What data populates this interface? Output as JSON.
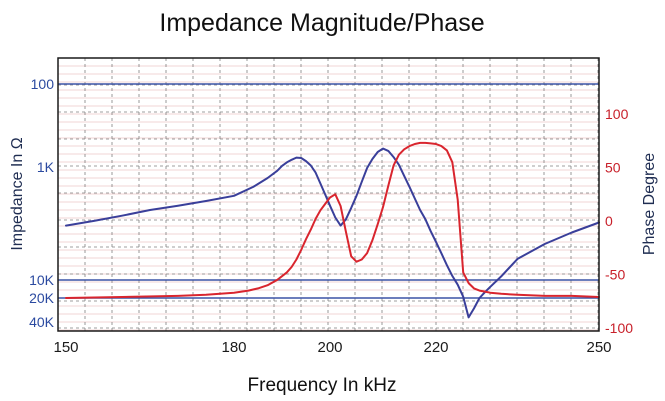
{
  "chart_data": {
    "type": "line",
    "title": "Impedance Magnitude/Phase",
    "xlabel": "Frequency In kHz",
    "ylabel_left": "Impedance In Ω",
    "ylabel_right": "Phase Degree",
    "xlim": [
      150,
      250
    ],
    "x_ticks": [
      "150",
      "180",
      "200",
      "220",
      "250"
    ],
    "left_axis": {
      "scale": "log",
      "inverted": true,
      "ylim": [
        100,
        40000
      ],
      "ticks": [
        {
          "label": "100",
          "value": 100
        },
        {
          "label": "1K",
          "value": 1000
        },
        {
          "label": "10K",
          "value": 10000
        },
        {
          "label": "20K",
          "value": 20000
        },
        {
          "label": "40K",
          "value": 40000
        }
      ]
    },
    "right_axis": {
      "ylim": [
        -100,
        150
      ],
      "ticks": [
        "100",
        "50",
        "0",
        "-50",
        "-100"
      ],
      "tick_values": [
        100,
        50,
        0,
        -50,
        -100
      ]
    },
    "grid": true,
    "colors": {
      "impedance": "#3a3f9a",
      "phase": "#d9252e",
      "axis": "#1a1a1a",
      "grid": "#808080",
      "minor_grid": "#e3a9a9",
      "ref_line": "#3b53a5"
    },
    "series": [
      {
        "axis": "left",
        "x": [
          150,
          155,
          160,
          165,
          170,
          175,
          180,
          184,
          187,
          189,
          190,
          191,
          192,
          193,
          194,
          195,
          196,
          197,
          198,
          199,
          200,
          201,
          202,
          203,
          204,
          205,
          206,
          207,
          208,
          209,
          210,
          211,
          212,
          213,
          214,
          215,
          216,
          217,
          218,
          219,
          220,
          221,
          222,
          223,
          224,
          225,
          226,
          227,
          228,
          229,
          230,
          232,
          235,
          240,
          245,
          250
        ],
        "values": [
          3300,
          3000,
          2700,
          2400,
          2200,
          2000,
          1800,
          1500,
          1250,
          1080,
          970,
          880,
          820,
          770,
          780,
          850,
          960,
          1120,
          1400,
          1750,
          2200,
          2800,
          3300,
          2900,
          2300,
          1800,
          1350,
          1020,
          800,
          660,
          600,
          640,
          760,
          940,
          1200,
          1500,
          1900,
          2400,
          2900,
          3700,
          4600,
          5800,
          7400,
          9200,
          12000,
          19000,
          35000,
          27000,
          20000,
          16000,
          13000,
          9300,
          6500,
          4800,
          3800,
          3100
        ]
      },
      {
        "axis": "right",
        "x": [
          150,
          160,
          170,
          175,
          180,
          183,
          185,
          187,
          189,
          191,
          192,
          193,
          194,
          195,
          196,
          197,
          198,
          199,
          200,
          201,
          202,
          203,
          204,
          205,
          206,
          207,
          208,
          209,
          210,
          211,
          212,
          213,
          214,
          215,
          216,
          217,
          218,
          219,
          220,
          221,
          222,
          223,
          224,
          225,
          226,
          227,
          228,
          229,
          230,
          232,
          235,
          240,
          245,
          250
        ],
        "values": [
          -72,
          -71,
          -70,
          -69,
          -67,
          -65,
          -63,
          -60,
          -55,
          -48,
          -43,
          -36,
          -27,
          -17,
          -8,
          2,
          10,
          16,
          22,
          25,
          14,
          -10,
          -33,
          -38,
          -36,
          -30,
          -18,
          -3,
          13,
          33,
          52,
          62,
          67,
          70,
          72,
          73,
          73,
          72.5,
          72,
          70,
          66,
          55,
          20,
          -48,
          -58,
          -63,
          -65,
          -66,
          -67,
          -68,
          -69,
          -70,
          -70,
          -71
        ]
      }
    ]
  }
}
